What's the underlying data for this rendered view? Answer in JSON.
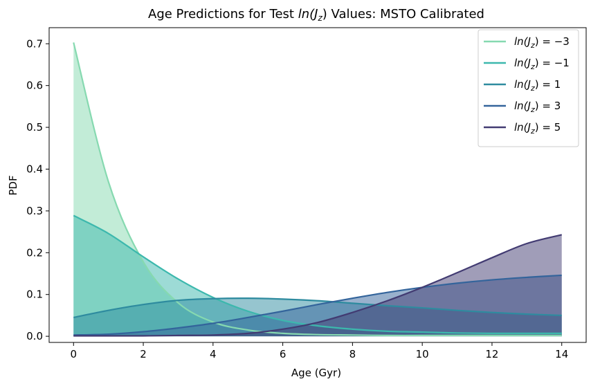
{
  "chart_data": {
    "type": "area",
    "title_parts": {
      "pre": "Age Predictions for Test ",
      "math": "ln(J",
      "sub": "z",
      "close": ")",
      "post": " Values: MSTO Calibrated"
    },
    "xlabel": "Age (Gyr)",
    "ylabel": "PDF",
    "xlim": [
      -0.7,
      14.7
    ],
    "ylim": [
      -0.0147,
      0.7385
    ],
    "xticks": [
      0,
      2,
      4,
      6,
      8,
      10,
      12,
      14
    ],
    "yticks": [
      0.0,
      0.1,
      0.2,
      0.3,
      0.4,
      0.5,
      0.6,
      0.7
    ],
    "xtick_labels": [
      "0",
      "2",
      "4",
      "6",
      "8",
      "10",
      "12",
      "14"
    ],
    "ytick_labels": [
      "0.0",
      "0.1",
      "0.2",
      "0.3",
      "0.4",
      "0.5",
      "0.6",
      "0.7"
    ],
    "grid": false,
    "legend_position": "top-right",
    "x": [
      0,
      1,
      2,
      3,
      4,
      5,
      6,
      7,
      8,
      9,
      10,
      11,
      12,
      13,
      14
    ],
    "series": [
      {
        "label_value": "−3",
        "color": "#86d9b0",
        "values": [
          0.703,
          0.37,
          0.178,
          0.08,
          0.034,
          0.015,
          0.007,
          0.004,
          0.003,
          0.002,
          0.002,
          0.002,
          0.002,
          0.002,
          0.002
        ]
      },
      {
        "label_value": "−1",
        "color": "#3cb8ad",
        "values": [
          0.289,
          0.246,
          0.19,
          0.137,
          0.093,
          0.06,
          0.038,
          0.025,
          0.017,
          0.012,
          0.01,
          0.008,
          0.007,
          0.007,
          0.007
        ]
      },
      {
        "label_value": "1",
        "color": "#2e8b9f",
        "values": [
          0.045,
          0.062,
          0.076,
          0.086,
          0.09,
          0.091,
          0.089,
          0.085,
          0.079,
          0.073,
          0.068,
          0.062,
          0.057,
          0.053,
          0.05
        ]
      },
      {
        "label_value": "3",
        "color": "#33649b",
        "values": [
          0.003,
          0.005,
          0.011,
          0.02,
          0.031,
          0.045,
          0.06,
          0.076,
          0.091,
          0.105,
          0.117,
          0.127,
          0.135,
          0.141,
          0.146
        ]
      },
      {
        "label_value": "5",
        "color": "#423b72",
        "values": [
          0.001,
          0.001,
          0.001,
          0.002,
          0.003,
          0.007,
          0.017,
          0.033,
          0.057,
          0.085,
          0.117,
          0.152,
          0.188,
          0.222,
          0.243
        ]
      }
    ],
    "legend_prefix": "ln(J",
    "legend_sub": "z",
    "legend_eq": ") = "
  }
}
